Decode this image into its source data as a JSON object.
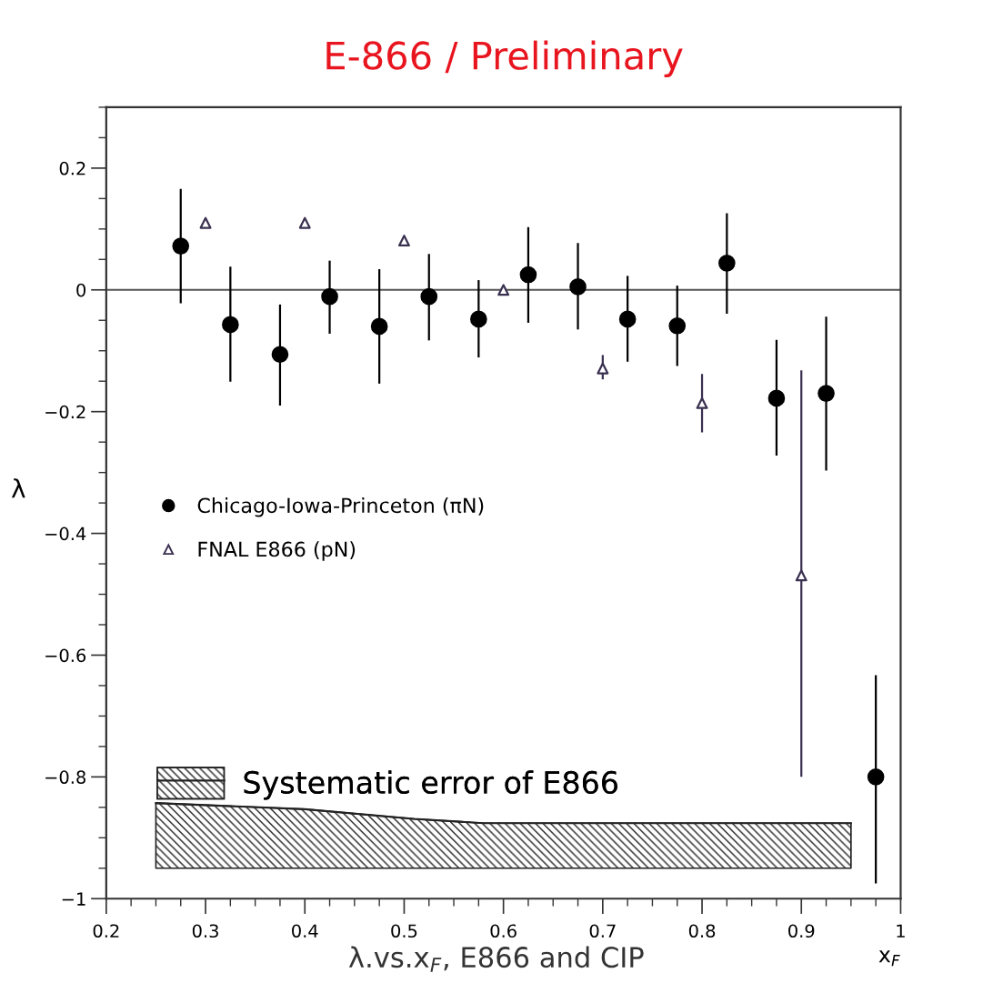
{
  "chart_data": {
    "type": "scatter",
    "title": "E-866 / Preliminary",
    "xlabel": "x$_{F}$",
    "ylabel": "λ",
    "annotations": [
      "λ.vs.x$_{F}$, E866 and CIP"
    ],
    "xlim": [
      0.2,
      1
    ],
    "xticks": [
      0.2,
      0.3,
      0.4,
      0.5,
      0.6,
      0.7,
      0.8,
      0.9,
      1
    ],
    "ylim": [
      -1,
      0.3
    ],
    "yticks": [
      {
        "value": -1,
        "label": "−1"
      },
      {
        "value": -0.8,
        "label": "−0.8"
      },
      {
        "value": -0.6,
        "label": "−0.6"
      },
      {
        "value": -0.4,
        "label": "−0.4"
      },
      {
        "value": -0.2,
        "label": "−0.2"
      },
      0,
      0.2
    ],
    "grid": false,
    "legend": "center left",
    "ref_lines": [
      {
        "axis": "y",
        "value": 0,
        "color": "#555555"
      }
    ],
    "series": [
      {
        "name": "Chicago-Iowa-Princeton (πN)",
        "color": "#000000",
        "marker": "circle",
        "x": [
          0.275,
          0.325,
          0.375,
          0.425,
          0.475,
          0.525,
          0.575,
          0.625,
          0.675,
          0.725,
          0.775,
          0.825,
          0.875,
          0.925,
          0.975
        ],
        "values": [
          0.072,
          -0.057,
          -0.106,
          -0.011,
          -0.06,
          -0.011,
          -0.048,
          0.025,
          0.005,
          -0.048,
          -0.059,
          0.044,
          -0.178,
          -0.17,
          -0.8
        ],
        "errors": [
          [
            -0.022,
            0.166
          ],
          [
            -0.151,
            0.038
          ],
          [
            -0.19,
            -0.024
          ],
          [
            -0.072,
            0.048
          ],
          [
            -0.154,
            0.034
          ],
          [
            -0.083,
            0.059
          ],
          [
            -0.111,
            0.016
          ],
          [
            -0.054,
            0.103
          ],
          [
            -0.065,
            0.077
          ],
          [
            -0.118,
            0.023
          ],
          [
            -0.125,
            0.007
          ],
          [
            -0.039,
            0.126
          ],
          [
            -0.272,
            -0.082
          ],
          [
            -0.297,
            -0.044
          ],
          [
            -0.975,
            -0.633
          ]
        ]
      },
      {
        "name": "FNAL E866 (pN)",
        "color": "#3a3050",
        "marker": "triangle",
        "x": [
          0.3,
          0.4,
          0.5,
          0.6,
          0.7,
          0.8,
          0.9
        ],
        "values": [
          0.11,
          0.11,
          0.081,
          0.0,
          -0.129,
          -0.186,
          -0.469
        ],
        "errors": [
          null,
          null,
          null,
          null,
          [
            -0.147,
            -0.107
          ],
          [
            -0.234,
            -0.138
          ],
          [
            -0.8,
            -0.132
          ]
        ]
      },
      {
        "name": "Systematic error of E866",
        "type": "line",
        "color": "#222222",
        "x": [
          0.25,
          0.4,
          0.51,
          0.58,
          0.95
        ],
        "values": [
          -0.843,
          -0.853,
          -0.869,
          -0.876,
          -0.876
        ],
        "lower": [
          -0.95,
          -0.95,
          -0.95,
          -0.95,
          -0.95
        ],
        "upper": [
          -0.843,
          -0.853,
          -0.869,
          -0.876,
          -0.876
        ]
      }
    ]
  }
}
